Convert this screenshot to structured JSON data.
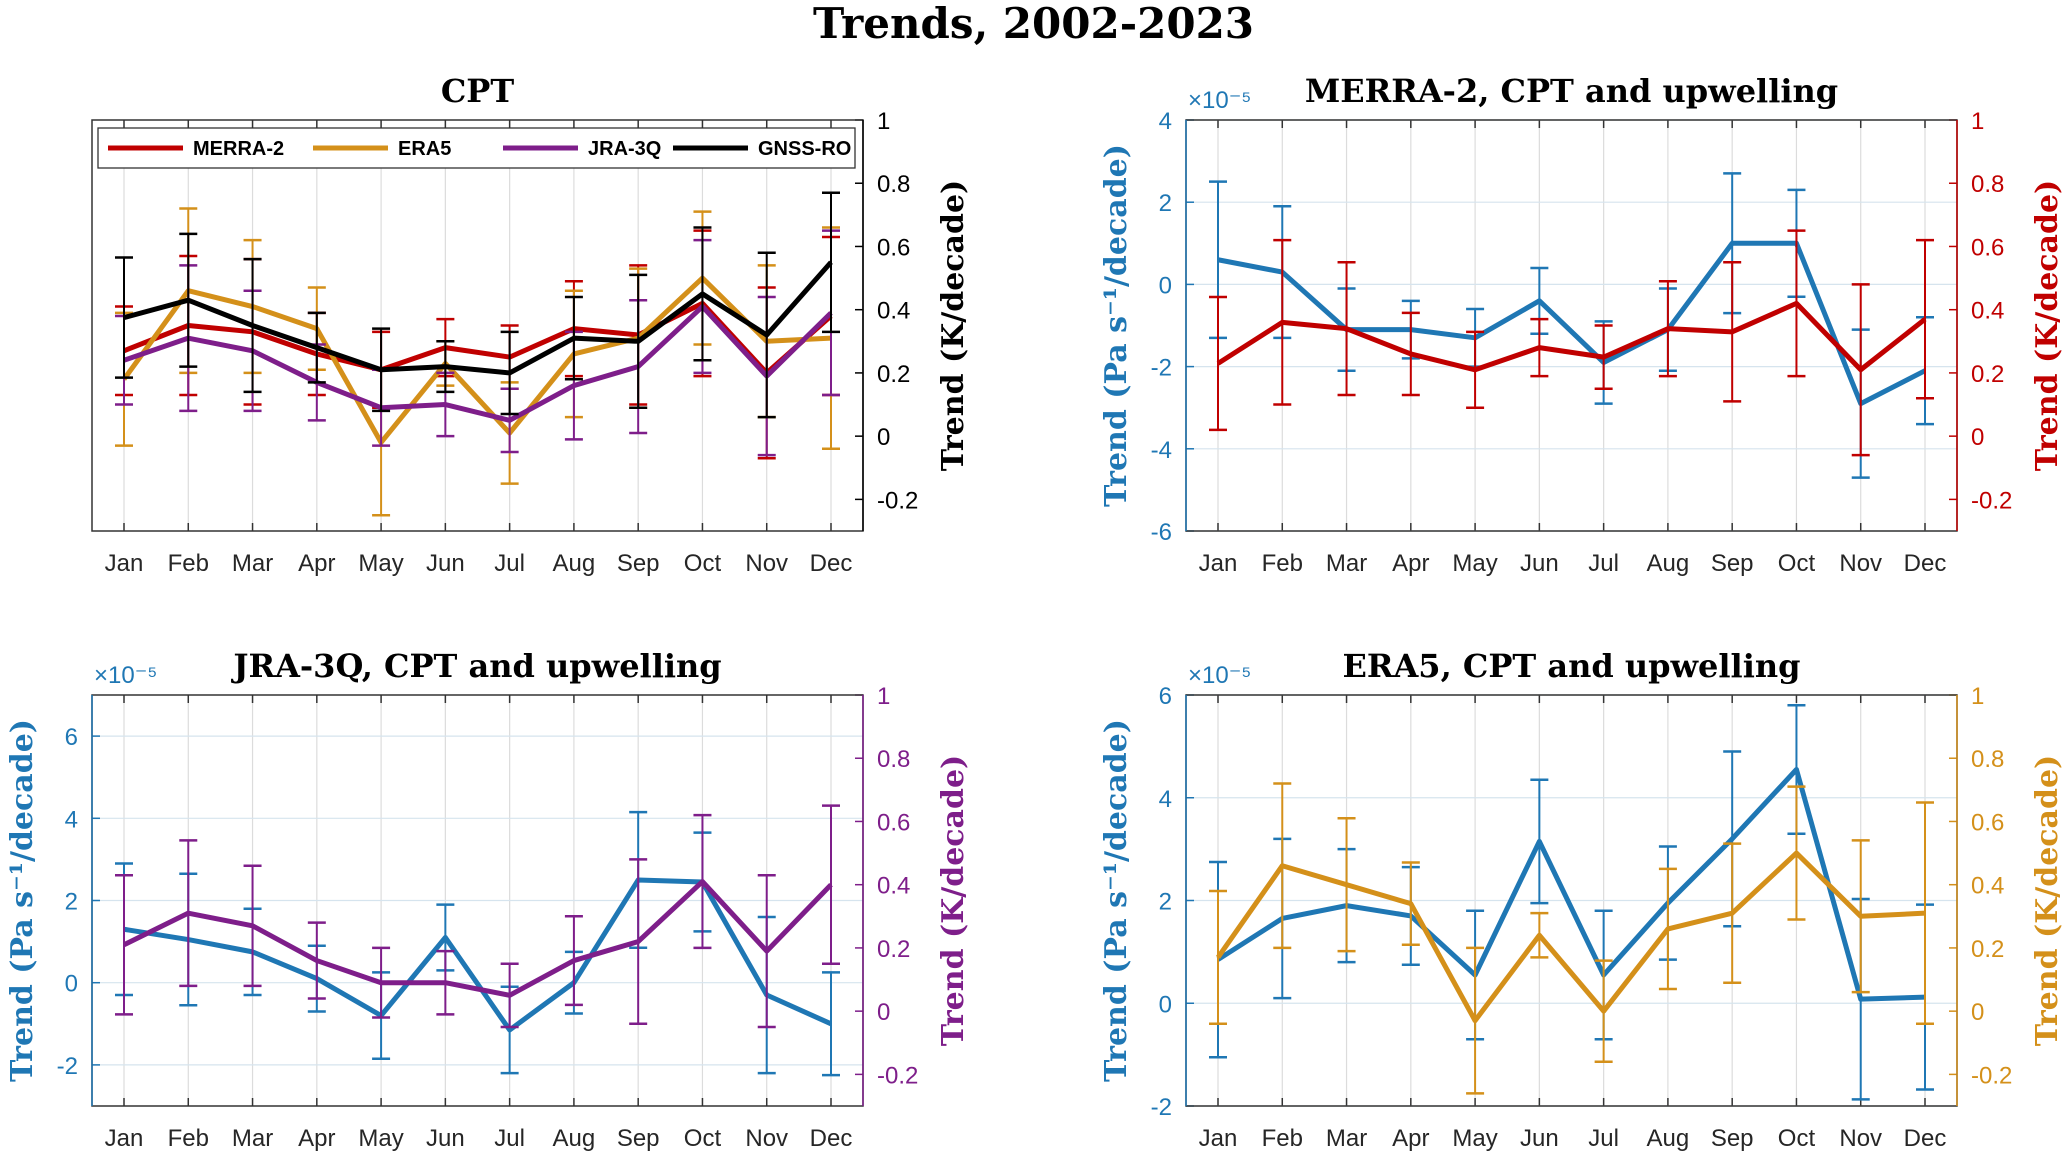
{
  "title": "Trends, 2002-2023",
  "colors": {
    "merra": "#c00000",
    "era5": "#d4901a",
    "jra": "#7e1e8a",
    "gnss": "#000000",
    "upwelling": "#1f77b4",
    "grid": "#dcdcdc"
  },
  "chart_data": [
    {
      "type": "line",
      "title": "CPT",
      "categories": [
        "Jan",
        "Feb",
        "Mar",
        "Apr",
        "May",
        "Jun",
        "Jul",
        "Aug",
        "Sep",
        "Oct",
        "Nov",
        "Dec"
      ],
      "ylabel_right": "Trend (K/decade)",
      "yright_lim": [
        -0.3,
        1
      ],
      "yright_ticks": [
        -0.2,
        0,
        0.2,
        0.4,
        0.6,
        0.8,
        1
      ],
      "legend": "top (inside)",
      "grid": true,
      "series": [
        {
          "name": "MERRA-2",
          "color_key": "merra",
          "values": [
            0.27,
            0.35,
            0.33,
            0.26,
            0.21,
            0.28,
            0.25,
            0.34,
            0.32,
            0.42,
            0.2,
            0.38
          ],
          "err": [
            0.14,
            0.22,
            0.23,
            0.13,
            0.12,
            0.09,
            0.1,
            0.15,
            0.22,
            0.23,
            0.27,
            0.25
          ]
        },
        {
          "name": "ERA5",
          "color_key": "era5",
          "values": [
            0.18,
            0.46,
            0.41,
            0.34,
            -0.02,
            0.23,
            0.01,
            0.26,
            0.31,
            0.5,
            0.3,
            0.31
          ],
          "err": [
            0.21,
            0.26,
            0.21,
            0.13,
            0.23,
            0.07,
            0.16,
            0.2,
            0.22,
            0.21,
            0.24,
            0.35
          ]
        },
        {
          "name": "JRA-3Q",
          "color_key": "jra",
          "values": [
            0.24,
            0.31,
            0.27,
            0.17,
            0.09,
            0.1,
            0.05,
            0.16,
            0.22,
            0.41,
            0.19,
            0.39
          ],
          "err": [
            0.14,
            0.23,
            0.19,
            0.12,
            0.12,
            0.1,
            0.1,
            0.17,
            0.21,
            0.21,
            0.25,
            0.26
          ]
        },
        {
          "name": "GNSS-RO",
          "color_key": "gnss",
          "values": [
            0.375,
            0.43,
            0.35,
            0.28,
            0.21,
            0.22,
            0.2,
            0.31,
            0.3,
            0.45,
            0.32,
            0.55
          ],
          "err": [
            0.19,
            0.21,
            0.21,
            0.11,
            0.13,
            0.08,
            0.13,
            0.13,
            0.21,
            0.21,
            0.26,
            0.22
          ]
        }
      ]
    },
    {
      "type": "line",
      "title": "MERRA-2, CPT and upwelling",
      "categories": [
        "Jan",
        "Feb",
        "Mar",
        "Apr",
        "May",
        "Jun",
        "Jul",
        "Aug",
        "Sep",
        "Oct",
        "Nov",
        "Dec"
      ],
      "ylabel_left": "Trend (Pa s⁻¹/decade)",
      "yleft_exponent": "×10⁻⁵",
      "yleft_lim": [
        -6,
        4
      ],
      "yleft_ticks": [
        -6,
        -4,
        -2,
        0,
        2,
        4
      ],
      "ylabel_right": "Trend (K/decade)",
      "yright_lim": [
        -0.3,
        1
      ],
      "yright_ticks": [
        -0.2,
        0,
        0.2,
        0.4,
        0.6,
        0.8,
        1
      ],
      "grid": true,
      "series": [
        {
          "name": "upwelling",
          "axis": "left",
          "color_key": "upwelling",
          "values": [
            0.6,
            0.3,
            -1.1,
            -1.1,
            -1.3,
            -0.4,
            -1.9,
            -1.1,
            1.0,
            1.0,
            -2.9,
            -2.1
          ],
          "err": [
            1.9,
            1.6,
            1.0,
            0.7,
            0.7,
            0.8,
            1.0,
            1.0,
            1.7,
            1.3,
            1.8,
            1.3
          ]
        },
        {
          "name": "CPT",
          "axis": "right",
          "color_key": "merra",
          "values": [
            0.23,
            0.36,
            0.34,
            0.26,
            0.21,
            0.28,
            0.25,
            0.34,
            0.33,
            0.42,
            0.21,
            0.37
          ],
          "err": [
            0.21,
            0.26,
            0.21,
            0.13,
            0.12,
            0.09,
            0.1,
            0.15,
            0.22,
            0.23,
            0.27,
            0.25
          ]
        }
      ]
    },
    {
      "type": "line",
      "title": "JRA-3Q, CPT and upwelling",
      "categories": [
        "Jan",
        "Feb",
        "Mar",
        "Apr",
        "May",
        "Jun",
        "Jul",
        "Aug",
        "Sep",
        "Oct",
        "Nov",
        "Dec"
      ],
      "ylabel_left": "Trend (Pa s⁻¹/decade)",
      "yleft_exponent": "×10⁻⁵",
      "yleft_lim": [
        -3,
        7
      ],
      "yleft_ticks": [
        -2,
        0,
        2,
        4,
        6
      ],
      "ylabel_right": "Trend (K/decade)",
      "yright_lim": [
        -0.3,
        1
      ],
      "yright_ticks": [
        -0.2,
        0,
        0.2,
        0.4,
        0.6,
        0.8,
        1
      ],
      "grid": true,
      "series": [
        {
          "name": "upwelling",
          "axis": "left",
          "color_key": "upwelling",
          "values": [
            1.3,
            1.05,
            0.75,
            0.1,
            -0.8,
            1.1,
            -1.15,
            0.0,
            2.5,
            2.45,
            -0.3,
            -1.0
          ],
          "err": [
            1.6,
            1.6,
            1.05,
            0.8,
            1.05,
            0.8,
            1.05,
            0.75,
            1.65,
            1.2,
            1.9,
            1.25
          ]
        },
        {
          "name": "CPT",
          "axis": "right",
          "color_key": "jra",
          "values": [
            0.21,
            0.31,
            0.27,
            0.16,
            0.09,
            0.09,
            0.05,
            0.16,
            0.22,
            0.41,
            0.19,
            0.4
          ],
          "err": [
            0.22,
            0.23,
            0.19,
            0.12,
            0.11,
            0.1,
            0.1,
            0.14,
            0.26,
            0.21,
            0.24,
            0.25
          ]
        }
      ]
    },
    {
      "type": "line",
      "title": "ERA5, CPT and upwelling",
      "categories": [
        "Jan",
        "Feb",
        "Mar",
        "Apr",
        "May",
        "Jun",
        "Jul",
        "Aug",
        "Sep",
        "Oct",
        "Nov",
        "Dec"
      ],
      "ylabel_left": "Trend (Pa s⁻¹/decade)",
      "yleft_exponent": "×10⁻⁵",
      "yleft_lim": [
        -2,
        6
      ],
      "yleft_ticks": [
        -2,
        0,
        2,
        4,
        6
      ],
      "ylabel_right": "Trend (K/decade)",
      "yright_lim": [
        -0.3,
        1
      ],
      "yright_ticks": [
        -0.2,
        0,
        0.2,
        0.4,
        0.6,
        0.8,
        1
      ],
      "grid": true,
      "series": [
        {
          "name": "upwelling",
          "axis": "left",
          "color_key": "upwelling",
          "values": [
            0.85,
            1.65,
            1.9,
            1.7,
            0.55,
            3.15,
            0.55,
            1.95,
            3.2,
            4.55,
            0.08,
            0.12
          ],
          "err": [
            1.9,
            1.55,
            1.1,
            0.95,
            1.25,
            1.2,
            1.25,
            1.1,
            1.7,
            1.25,
            1.95,
            1.8
          ]
        },
        {
          "name": "CPT",
          "axis": "right",
          "color_key": "era5",
          "values": [
            0.17,
            0.46,
            0.4,
            0.34,
            -0.03,
            0.24,
            0.0,
            0.26,
            0.31,
            0.5,
            0.3,
            0.31
          ],
          "err": [
            0.21,
            0.26,
            0.21,
            0.13,
            0.23,
            0.07,
            0.16,
            0.19,
            0.22,
            0.21,
            0.24,
            0.35
          ]
        }
      ]
    }
  ]
}
